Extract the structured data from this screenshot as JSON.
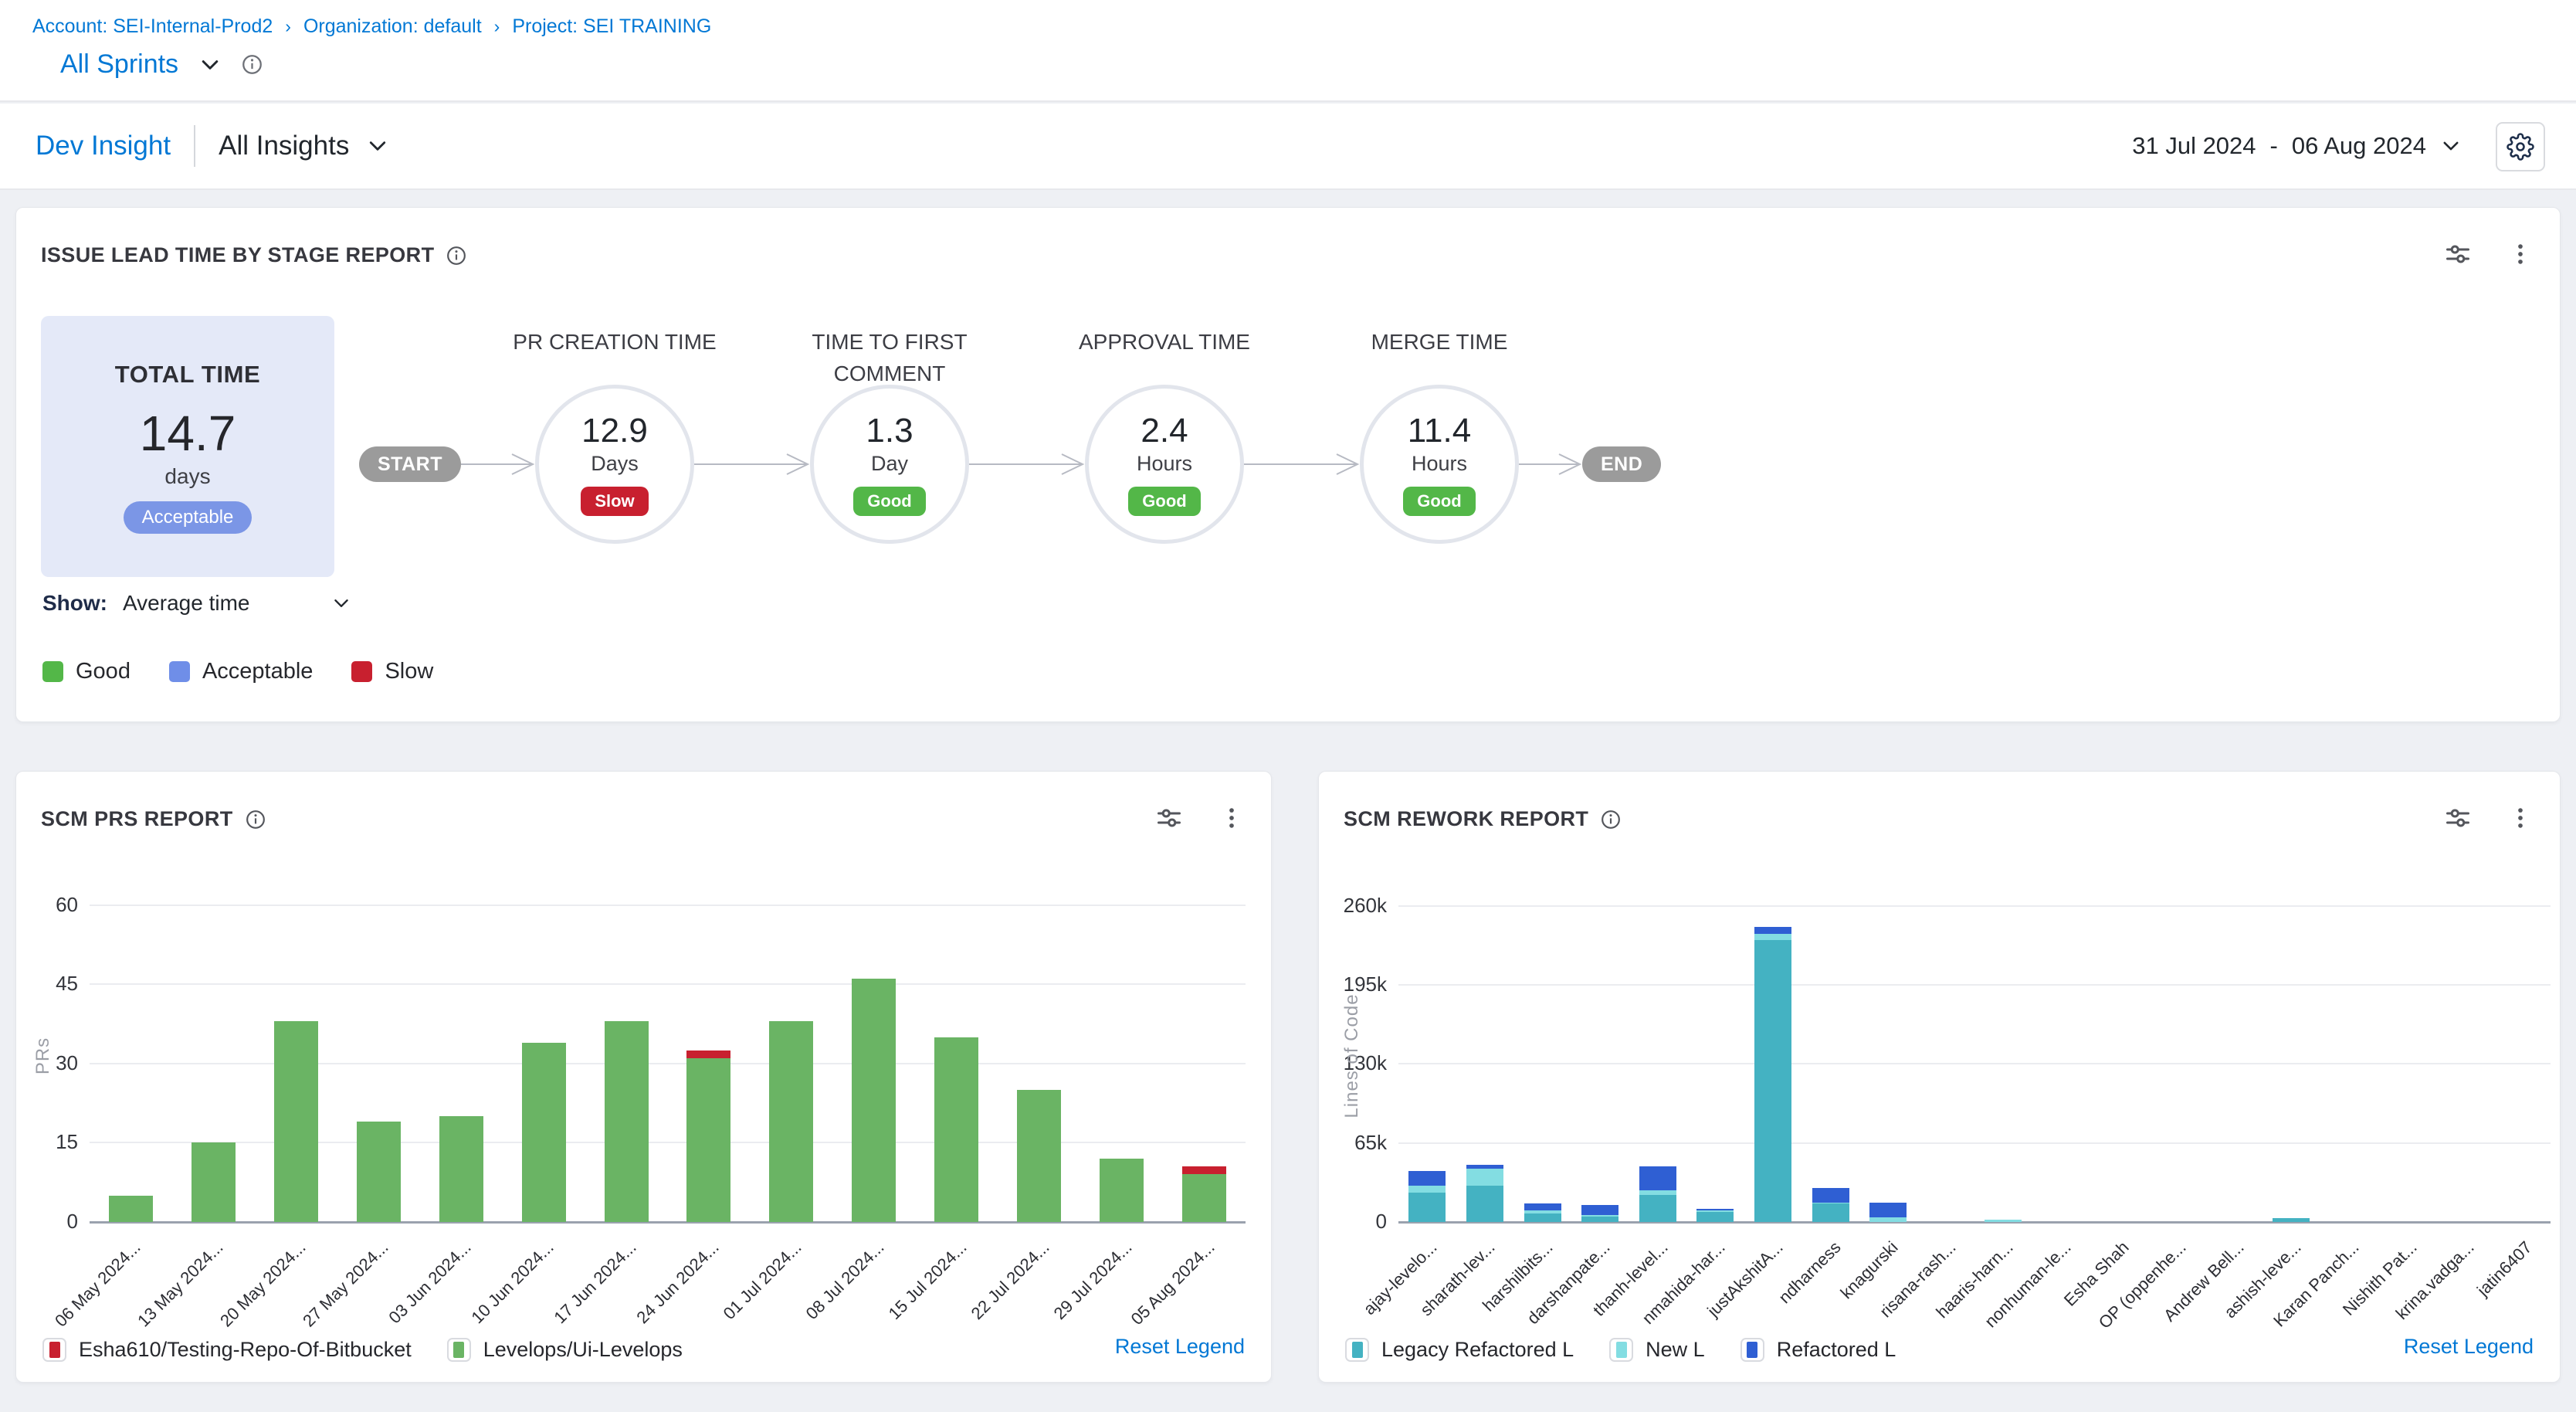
{
  "breadcrumb": {
    "separator": "›",
    "items": [
      "Account: SEI-Internal-Prod2",
      "Organization: default",
      "Project: SEI TRAINING"
    ]
  },
  "sprint_selector": {
    "label": "All Sprints"
  },
  "header": {
    "insight_name": "Dev Insight",
    "collection": "All Insights",
    "date_range": {
      "start": "31 Jul 2024",
      "separator": "-",
      "end": "06 Aug 2024"
    }
  },
  "lead_time_panel": {
    "title": "ISSUE LEAD TIME BY STAGE REPORT",
    "total_card": {
      "title": "TOTAL TIME",
      "value": "14.7",
      "unit": "days",
      "badge": "Acceptable"
    },
    "show_label": "Show:",
    "show_value": "Average time",
    "rating_colors": {
      "Good": "#53b748",
      "Acceptable": "#7b96e6",
      "Slow": "#c8202f"
    },
    "flow": {
      "start": "START",
      "end": "END",
      "stages": [
        {
          "name": "PR CREATION TIME",
          "value": "12.9",
          "unit": "Days",
          "rating": "Slow"
        },
        {
          "name": "TIME TO FIRST COMMENT",
          "value": "1.3",
          "unit": "Day",
          "rating": "Good"
        },
        {
          "name": "APPROVAL TIME",
          "value": "2.4",
          "unit": "Hours",
          "rating": "Good"
        },
        {
          "name": "MERGE TIME",
          "value": "11.4",
          "unit": "Hours",
          "rating": "Good"
        }
      ]
    },
    "legend": [
      {
        "label": "Good",
        "color": "#53b748"
      },
      {
        "label": "Acceptable",
        "color": "#6f8ee8"
      },
      {
        "label": "Slow",
        "color": "#c8202f"
      }
    ]
  },
  "scm_prs_panel": {
    "title": "SCM PRS REPORT",
    "reset_label": "Reset Legend",
    "legend": [
      {
        "label": "Esha610/Testing-Repo-Of-Bitbucket",
        "color": "#c8202f"
      },
      {
        "label": "Levelops/Ui-Levelops",
        "color": "#6ab464"
      }
    ]
  },
  "scm_rework_panel": {
    "title": "SCM REWORK REPORT",
    "reset_label": "Reset Legend",
    "legend": [
      {
        "label": "Legacy Refactored L",
        "color": "#44b2c2"
      },
      {
        "label": "New L",
        "color": "#83dde2"
      },
      {
        "label": "Refactored L",
        "color": "#2f5fd3"
      }
    ]
  },
  "chart_data": [
    {
      "id": "scm_prs",
      "type": "bar",
      "stacked": true,
      "title": "SCM PRS REPORT",
      "xlabel": "",
      "ylabel": "PRs",
      "ylim": [
        0,
        62.6
      ],
      "grid": true,
      "legend_position": "bottom",
      "yticks": [
        {
          "label": "0",
          "value": 0
        },
        {
          "label": "15",
          "value": 15
        },
        {
          "label": "30",
          "value": 30
        },
        {
          "label": "45",
          "value": 45
        },
        {
          "label": "60",
          "value": 60
        }
      ],
      "categories": [
        "06 May 2024...",
        "13 May 2024...",
        "20 May 2024...",
        "27 May 2024...",
        "03 Jun 2024...",
        "10 Jun 2024...",
        "17 Jun 2024...",
        "24 Jun 2024...",
        "01 Jul 2024...",
        "08 Jul 2024...",
        "15 Jul 2024...",
        "22 Jul 2024...",
        "29 Jul 2024...",
        "05 Aug 2024..."
      ],
      "series": [
        {
          "name": "Levelops/Ui-Levelops",
          "color": "#6ab464",
          "values": [
            5,
            15,
            38,
            19,
            20,
            34,
            38,
            31,
            38,
            46,
            35,
            25,
            12,
            9
          ]
        },
        {
          "name": "Esha610/Testing-Repo-Of-Bitbucket",
          "color": "#c8202f",
          "values": [
            0,
            0,
            0,
            0,
            0,
            0,
            0,
            1.5,
            0,
            0,
            0,
            0,
            0,
            1.5
          ]
        }
      ]
    },
    {
      "id": "scm_rework",
      "type": "bar",
      "stacked": true,
      "title": "SCM REWORK REPORT",
      "xlabel": "",
      "ylabel": "Lines of Code",
      "ylim": [
        0,
        272000
      ],
      "grid": true,
      "legend_position": "bottom",
      "yticks": [
        {
          "label": "0",
          "value": 0
        },
        {
          "label": "65k",
          "value": 65000
        },
        {
          "label": "130k",
          "value": 130000
        },
        {
          "label": "195k",
          "value": 195000
        },
        {
          "label": "260k",
          "value": 260000
        }
      ],
      "categories": [
        "ajay-levelo...",
        "sharath-lev...",
        "harshilbits...",
        "darshanpate...",
        "thanh-level...",
        "nmahida-har...",
        "justAkshitA...",
        "ndharness",
        "knagurski",
        "risana-rash...",
        "haaris-harn...",
        "nonhuman-le...",
        "Esha Shah",
        "OP (oppenhe...",
        "Andrew Bell...",
        "ashish-leve...",
        "Karan Panch...",
        "Nishith Pat...",
        "krina.vadga...",
        "jatin6407"
      ],
      "series": [
        {
          "name": "Legacy Refactored L",
          "color": "#44b2c2",
          "values": [
            24000,
            30000,
            7000,
            4500,
            22000,
            8000,
            232000,
            15000,
            0,
            0,
            0,
            0,
            0,
            0,
            0,
            3000,
            0,
            0,
            0,
            0
          ]
        },
        {
          "name": "New L",
          "color": "#83dde2",
          "values": [
            6000,
            14000,
            2500,
            1000,
            4000,
            1500,
            5000,
            1000,
            4000,
            0,
            2000,
            0,
            0,
            0,
            0,
            0,
            0,
            0,
            0,
            0
          ]
        },
        {
          "name": "Refactored L",
          "color": "#2f5fd3",
          "values": [
            12000,
            3000,
            6000,
            8500,
            20000,
            1500,
            6000,
            12000,
            12000,
            0,
            0,
            0,
            0,
            0,
            0,
            0,
            0,
            0,
            0,
            0
          ]
        }
      ]
    }
  ]
}
